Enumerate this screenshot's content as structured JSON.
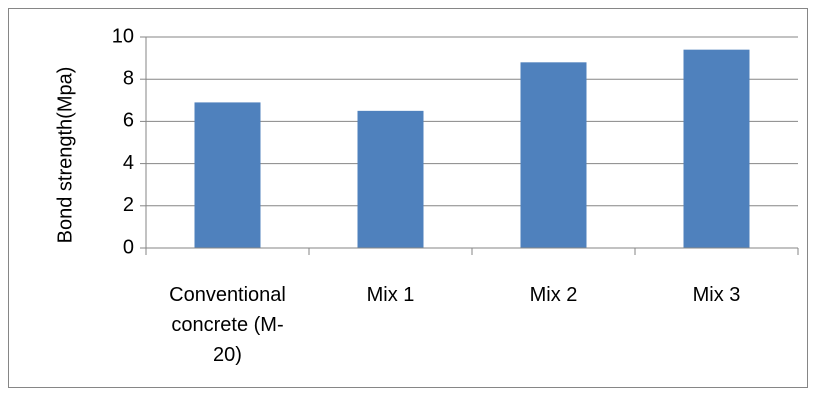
{
  "chart_data": {
    "type": "bar",
    "categories": [
      [
        "Conventional",
        "concrete (M-",
        "20)"
      ],
      [
        "Mix 1"
      ],
      [
        "Mix 2"
      ],
      [
        "Mix 3"
      ]
    ],
    "values": [
      6.9,
      6.5,
      8.8,
      9.4
    ],
    "ylabel": "Bond strength(Mpa)",
    "ylim": [
      0,
      10
    ],
    "yticks": [
      0,
      2,
      4,
      6,
      8,
      10
    ],
    "grid": true,
    "legend": "none",
    "bar_color": "#4F81BD",
    "grid_color": "#868686"
  }
}
